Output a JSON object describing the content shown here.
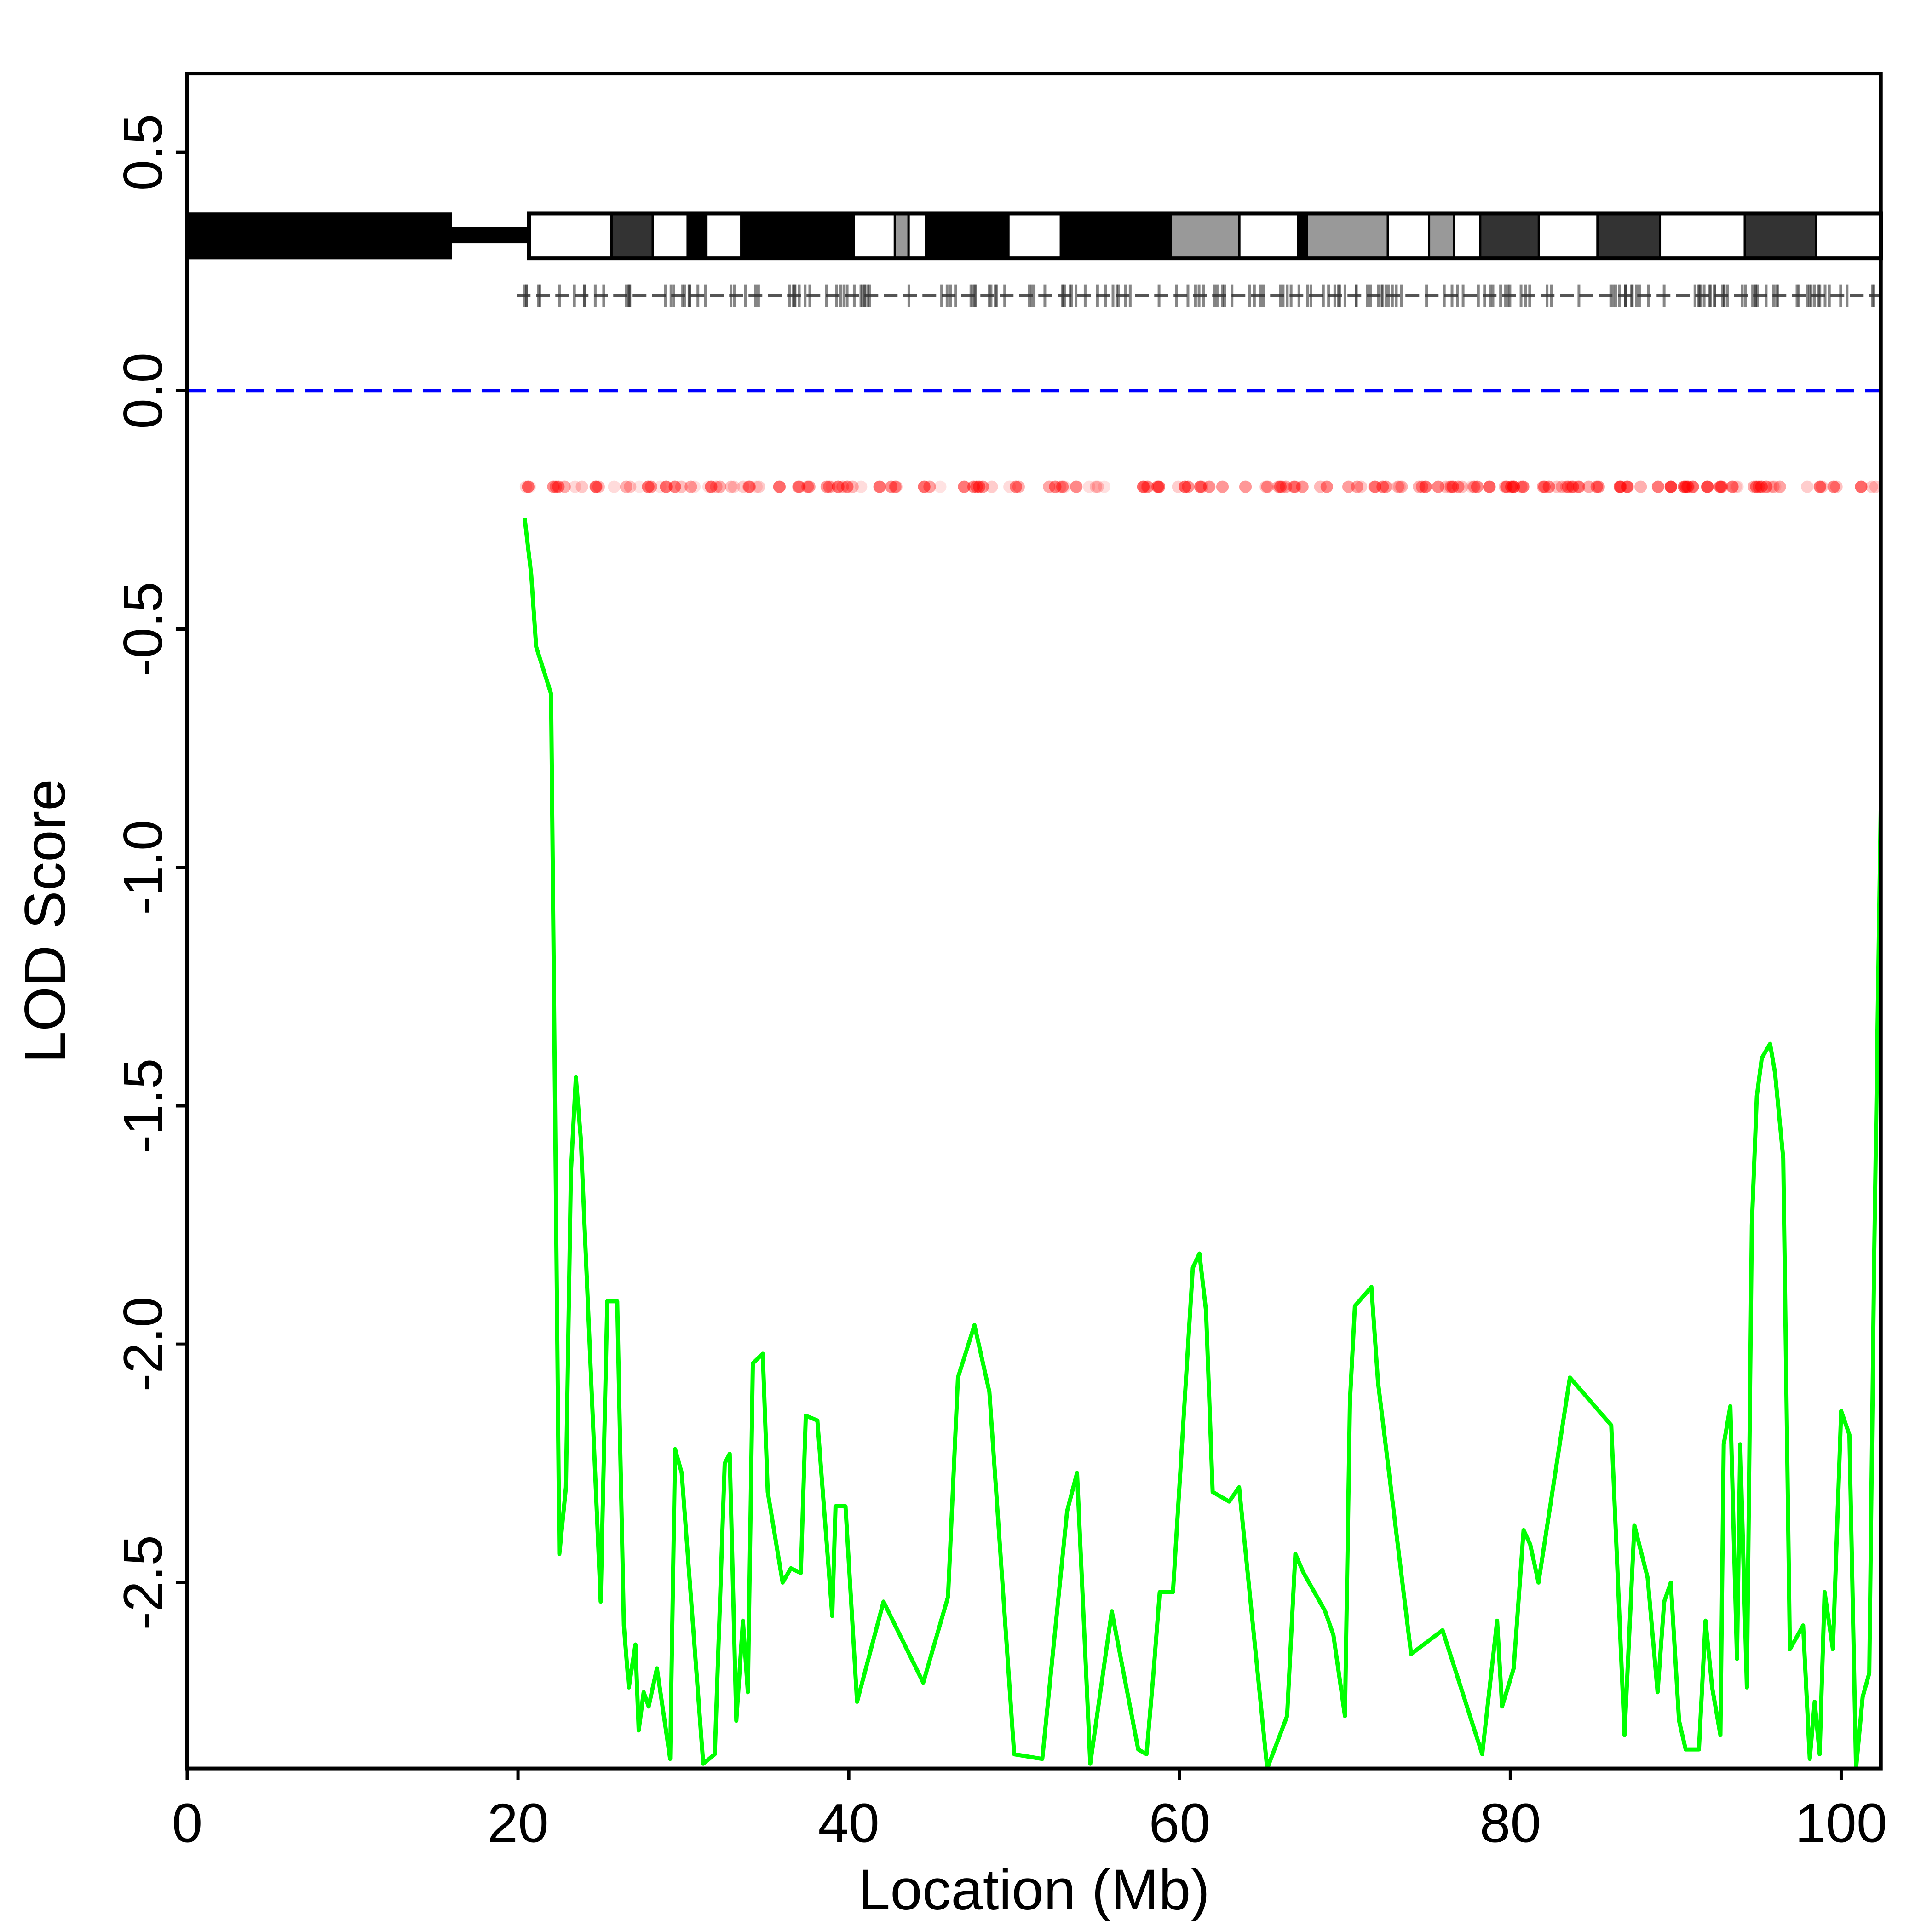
{
  "chart_data": {
    "type": "line",
    "x_label": "Location (Mb)",
    "y_label": "LOD Score",
    "xlim": [
      0,
      102.4
    ],
    "ylim": [
      -2.89,
      0.665
    ],
    "xticks": [
      0,
      20,
      40,
      60,
      80,
      100
    ],
    "yticks": [
      -2.5,
      {
        "value": -2.0,
        "label": "-2.0"
      },
      -1.5,
      {
        "value": -1.0,
        "label": "-1.0"
      },
      -0.5,
      {
        "value": 0.0,
        "label": "0.0"
      },
      0.5
    ],
    "reference_line": 0,
    "reference_color": "#0000ff",
    "x": [
      20.4,
      20.8,
      21.1,
      22.0,
      22.5,
      22.9,
      23.2,
      23.5,
      23.8,
      25.0,
      25.4,
      26.0,
      26.4,
      26.7,
      27.1,
      27.3,
      27.6,
      27.9,
      28.4,
      29.2,
      29.5,
      29.9,
      31.2,
      31.9,
      32.5,
      32.8,
      33.2,
      33.6,
      33.9,
      34.2,
      34.8,
      35.1,
      36.0,
      36.5,
      37.1,
      37.4,
      38.1,
      39.0,
      39.2,
      39.8,
      40.5,
      42.1,
      44.5,
      46.0,
      46.6,
      47.6,
      48.5,
      50.0,
      51.7,
      53.2,
      53.8,
      54.6,
      55.9,
      57.5,
      58.0,
      58.4,
      58.8,
      59.6,
      60.8,
      61.2,
      61.6,
      62.0,
      63.0,
      63.6,
      65.3,
      66.5,
      67.0,
      67.5,
      68.8,
      69.3,
      70.0,
      70.3,
      70.6,
      71.6,
      72.0,
      74.0,
      75.9,
      78.3,
      79.2,
      79.5,
      80.2,
      80.8,
      81.2,
      81.7,
      83.6,
      86.1,
      86.9,
      87.5,
      88.3,
      88.9,
      89.3,
      89.7,
      90.2,
      90.6,
      91.4,
      91.8,
      92.2,
      92.7,
      92.9,
      93.3,
      93.7,
      93.9,
      94.3,
      94.6,
      94.9,
      95.2,
      95.7,
      96.0,
      96.5,
      96.9,
      97.7,
      98.1,
      98.4,
      98.7,
      99.0,
      99.5,
      100.0,
      100.5,
      100.9,
      101.3,
      101.7,
      102.0,
      102.4
    ],
    "series": [
      {
        "color": "#00ff00",
        "values": [
          -0.267,
          -0.385,
          -0.537,
          -0.636,
          -2.44,
          -2.3,
          -1.64,
          -1.44,
          -1.57,
          -2.54,
          -1.91,
          -1.91,
          -2.59,
          -2.72,
          -2.63,
          -2.81,
          -2.73,
          -2.76,
          -2.68,
          -2.87,
          -2.22,
          -2.27,
          -2.88,
          -2.86,
          -2.25,
          -2.23,
          -2.79,
          -2.58,
          -2.73,
          -2.04,
          -2.02,
          -2.31,
          -2.5,
          -2.47,
          -2.48,
          -2.15,
          -2.16,
          -2.57,
          -2.34,
          -2.34,
          -2.75,
          -2.54,
          -2.71,
          -2.53,
          -2.07,
          -1.96,
          -2.1,
          -2.86,
          -2.87,
          -2.35,
          -2.27,
          -2.88,
          -2.56,
          -2.85,
          -2.86,
          -2.7,
          -2.52,
          -2.52,
          -1.84,
          -1.81,
          -1.93,
          -2.31,
          -2.33,
          -2.3,
          -2.89,
          -2.78,
          -2.44,
          -2.48,
          -2.56,
          -2.61,
          -2.78,
          -2.12,
          -1.92,
          -1.88,
          -2.08,
          -2.65,
          -2.6,
          -2.86,
          -2.58,
          -2.76,
          -2.68,
          -2.39,
          -2.42,
          -2.5,
          -2.07,
          -2.17,
          -2.82,
          -2.38,
          -2.49,
          -2.73,
          -2.54,
          -2.5,
          -2.79,
          -2.85,
          -2.85,
          -2.58,
          -2.72,
          -2.82,
          -2.21,
          -2.13,
          -2.66,
          -2.21,
          -2.72,
          -1.75,
          -1.48,
          -1.4,
          -1.37,
          -1.43,
          -1.61,
          -2.64,
          -2.59,
          -2.87,
          -2.75,
          -2.86,
          -2.52,
          -2.64,
          -2.14,
          -2.19,
          -2.89,
          -2.74,
          -2.69,
          -1.81,
          -0.86
        ]
      }
    ]
  }
}
